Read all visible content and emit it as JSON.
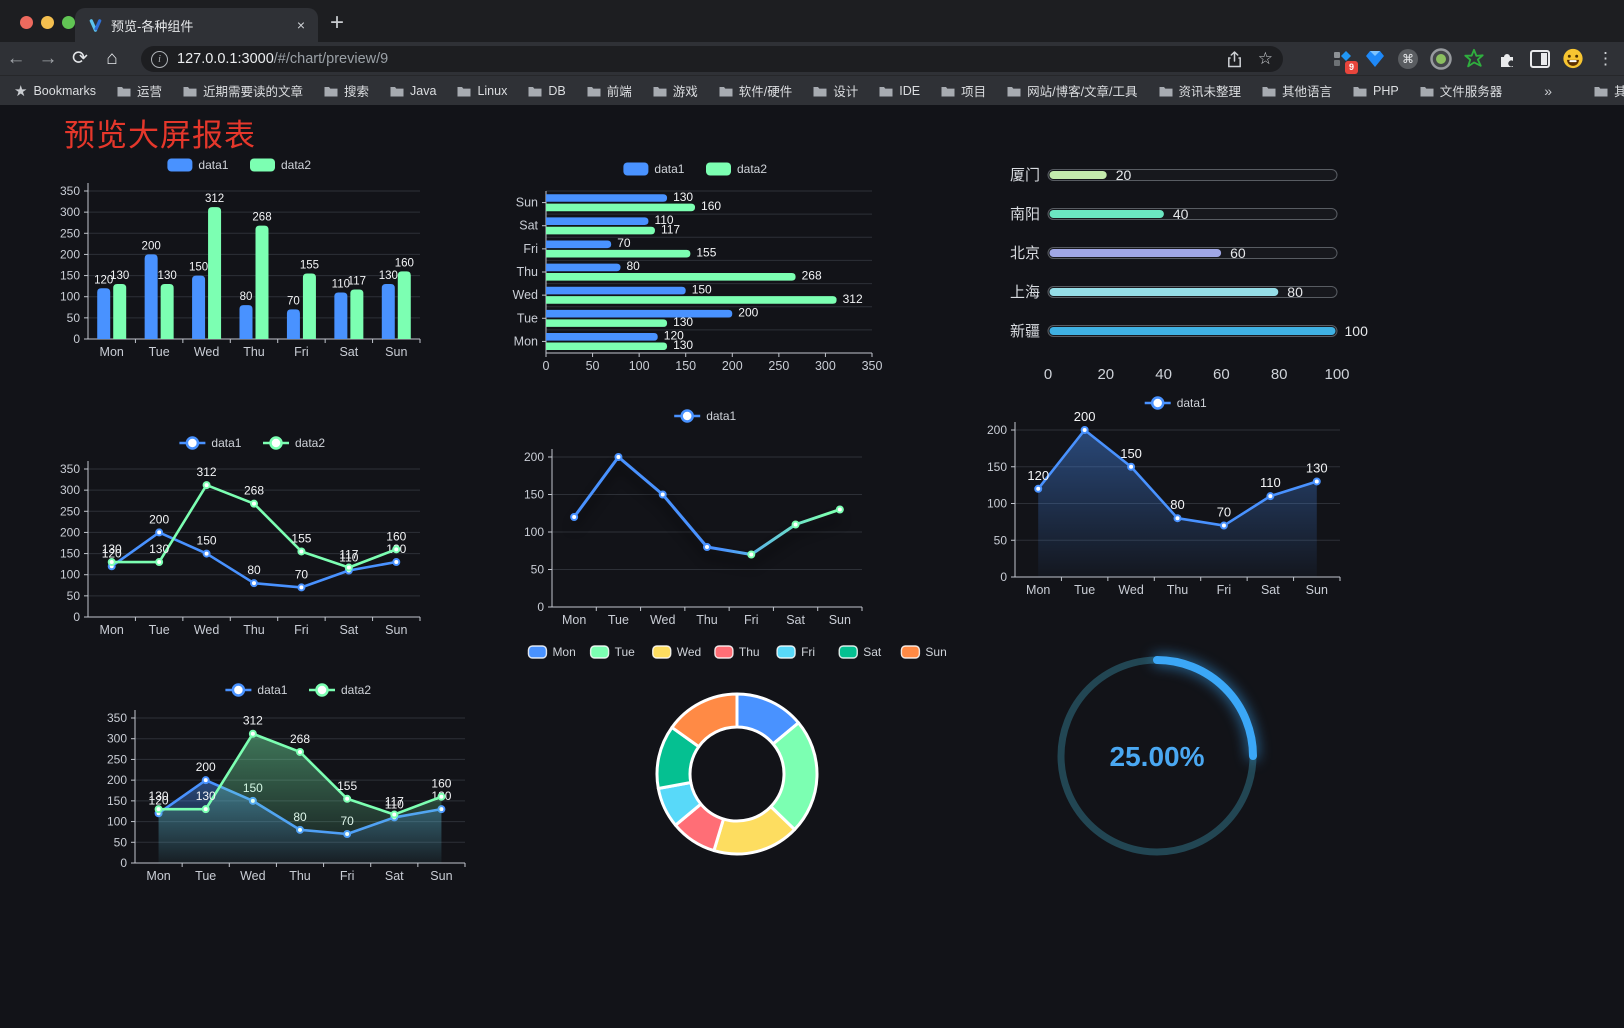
{
  "browser": {
    "tab_title": "预览-各种组件",
    "url_host": "127.0.0.1:3000",
    "url_path": "/#/chart/preview/9",
    "traffic_lights": [
      "#ed6a5e",
      "#f4bf4f",
      "#61c554"
    ],
    "bookmarks_label": "Bookmarks",
    "bookmarks": [
      "运营",
      "近期需要读的文章",
      "搜索",
      "Java",
      "Linux",
      "DB",
      "前端",
      "游戏",
      "软件/硬件",
      "设计",
      "IDE",
      "项目",
      "网站/博客/文章/工具",
      "资讯未整理",
      "其他语言",
      "PHP",
      "文件服务器"
    ],
    "bookmarks_overflow": "»",
    "other_bookmarks": "其他书签",
    "extension_badge": "9"
  },
  "icons": {
    "back": "←",
    "forward": "→",
    "reload": "⟳",
    "home": "⌂",
    "star": "☆",
    "command": "⌘",
    "kebab": "⋮",
    "close": "×",
    "new_tab": "+",
    "info": "i"
  },
  "page": {
    "title": "预览大屏报表",
    "title_color": "#e5372b",
    "background": "#121318"
  },
  "chart_data": [
    {
      "id": "bar-grouped",
      "type": "bar",
      "legend": [
        "data1",
        "data2"
      ],
      "categories": [
        "Mon",
        "Tue",
        "Wed",
        "Thu",
        "Fri",
        "Sat",
        "Sun"
      ],
      "series": [
        {
          "name": "data1",
          "color": "#4992ff",
          "values": [
            120,
            200,
            150,
            80,
            70,
            110,
            130
          ]
        },
        {
          "name": "data2",
          "color": "#7cffb2",
          "values": [
            130,
            130,
            312,
            268,
            155,
            117,
            160
          ]
        }
      ],
      "ylim": [
        0,
        350
      ],
      "yticks": [
        0,
        50,
        100,
        150,
        200,
        250,
        300,
        350
      ],
      "point_labels": true
    },
    {
      "id": "bar-horizontal",
      "type": "bar",
      "legend": [
        "data1",
        "data2"
      ],
      "categories_top_to_bottom": [
        "Sun",
        "Sat",
        "Fri",
        "Thu",
        "Wed",
        "Tue",
        "Mon"
      ],
      "series": [
        {
          "name": "data1",
          "color": "#4992ff",
          "values_top_to_bottom": [
            130,
            110,
            70,
            80,
            150,
            200,
            120
          ]
        },
        {
          "name": "data2",
          "color": "#7cffb2",
          "values_top_to_bottom": [
            160,
            117,
            155,
            268,
            312,
            130,
            130
          ]
        }
      ],
      "xlim": [
        0,
        350
      ],
      "xticks": [
        0,
        50,
        100,
        150,
        200,
        250,
        300,
        350
      ],
      "point_labels": true
    },
    {
      "id": "progress-bars",
      "type": "bar",
      "items": [
        {
          "label": "厦门",
          "value": 20,
          "color": "#c4ebad"
        },
        {
          "label": "南阳",
          "value": 40,
          "color": "#6be6c1"
        },
        {
          "label": "北京",
          "value": 60,
          "color": "#a0a7e6"
        },
        {
          "label": "上海",
          "value": 80,
          "color": "#96dee8"
        },
        {
          "label": "新疆",
          "value": 100,
          "color": "#3fb1e3"
        }
      ],
      "xlim": [
        0,
        100
      ],
      "xticks": [
        0,
        20,
        40,
        60,
        80,
        100
      ]
    },
    {
      "id": "line-basic",
      "type": "line",
      "legend": [
        "data1",
        "data2"
      ],
      "categories": [
        "Mon",
        "Tue",
        "Wed",
        "Thu",
        "Fri",
        "Sat",
        "Sun"
      ],
      "series": [
        {
          "name": "data1",
          "color": "#4992ff",
          "values": [
            120,
            200,
            150,
            80,
            70,
            110,
            130
          ]
        },
        {
          "name": "data2",
          "color": "#7cffb2",
          "values": [
            130,
            130,
            312,
            268,
            155,
            117,
            160
          ]
        }
      ],
      "ylim": [
        0,
        350
      ],
      "yticks": [
        0,
        50,
        100,
        150,
        200,
        250,
        300,
        350
      ],
      "point_labels": true
    },
    {
      "id": "line-gradient",
      "type": "line",
      "legend": [
        "data1"
      ],
      "categories": [
        "Mon",
        "Tue",
        "Wed",
        "Thu",
        "Fri",
        "Sat",
        "Sun"
      ],
      "series": [
        {
          "name": "data1",
          "color": "#4992ff",
          "values": [
            120,
            200,
            150,
            80,
            70,
            110,
            130
          ]
        }
      ],
      "gradient": [
        "#4992ff",
        "#7cffb2"
      ],
      "ylim": [
        0,
        200
      ],
      "yticks": [
        0,
        50,
        100,
        150,
        200
      ],
      "point_labels": false
    },
    {
      "id": "line-area",
      "type": "area",
      "legend": [
        "data1"
      ],
      "categories": [
        "Mon",
        "Tue",
        "Wed",
        "Thu",
        "Fri",
        "Sat",
        "Sun"
      ],
      "series": [
        {
          "name": "data1",
          "color": "#4992ff",
          "values": [
            120,
            200,
            150,
            80,
            70,
            110,
            130
          ]
        }
      ],
      "ylim": [
        0,
        200
      ],
      "yticks": [
        0,
        50,
        100,
        150,
        200
      ],
      "point_labels": true
    },
    {
      "id": "line-area-double",
      "type": "area",
      "legend": [
        "data1",
        "data2"
      ],
      "categories": [
        "Mon",
        "Tue",
        "Wed",
        "Thu",
        "Fri",
        "Sat",
        "Sun"
      ],
      "series": [
        {
          "name": "data1",
          "color": "#4992ff",
          "values": [
            120,
            200,
            150,
            80,
            70,
            110,
            130
          ]
        },
        {
          "name": "data2",
          "color": "#7cffb2",
          "values": [
            130,
            130,
            312,
            268,
            155,
            117,
            160
          ]
        }
      ],
      "ylim": [
        0,
        350
      ],
      "yticks": [
        0,
        50,
        100,
        150,
        200,
        250,
        300,
        350
      ],
      "point_labels": true
    },
    {
      "id": "donut",
      "type": "pie",
      "categories": [
        "Mon",
        "Tue",
        "Wed",
        "Thu",
        "Fri",
        "Sat",
        "Sun"
      ],
      "values": [
        120,
        200,
        150,
        80,
        70,
        110,
        130
      ],
      "colors": [
        "#4992ff",
        "#7cffb2",
        "#fddd60",
        "#ff6e76",
        "#58d9f9",
        "#05c091",
        "#ff8a45"
      ],
      "legend_position": "top"
    },
    {
      "id": "gauge",
      "type": "gauge",
      "value": 25,
      "value_text": "25.00%",
      "arc_color": "#3ba7f7",
      "track_color": "#224653",
      "text_color": "#4aa8f2"
    }
  ]
}
